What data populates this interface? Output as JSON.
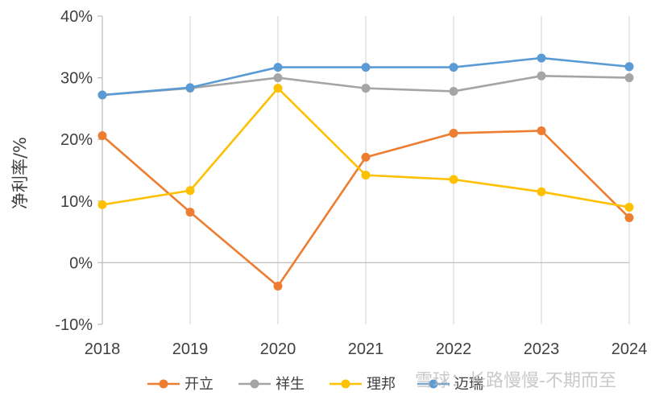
{
  "chart_data": {
    "type": "line",
    "title": "",
    "xlabel": "",
    "ylabel": "净利率/%",
    "categories": [
      "2018",
      "2019",
      "2020",
      "2021",
      "2022",
      "2023",
      "2024"
    ],
    "ylim": [
      -10,
      40
    ],
    "yticks": [
      -10,
      0,
      10,
      20,
      30,
      40
    ],
    "ytick_labels": [
      "-10%",
      "0%",
      "10%",
      "20%",
      "30%",
      "40%"
    ],
    "grid": "vertical",
    "legend_position": "bottom",
    "series": [
      {
        "name": "开立",
        "color": "#ED7D31",
        "values": [
          20.6,
          8.2,
          -3.8,
          17.1,
          21.0,
          21.4,
          7.3
        ]
      },
      {
        "name": "祥生",
        "color": "#A5A5A5",
        "values": [
          27.2,
          28.3,
          30.0,
          28.3,
          27.8,
          30.3,
          30.0
        ]
      },
      {
        "name": "理邦",
        "color": "#FFC000",
        "values": [
          9.4,
          11.7,
          28.3,
          14.2,
          13.5,
          11.5,
          9.0
        ]
      },
      {
        "name": "迈瑞",
        "color": "#5B9BD5",
        "values": [
          27.2,
          28.4,
          31.7,
          31.7,
          31.7,
          33.2,
          31.8
        ]
      }
    ]
  },
  "watermark": "雪球：长路慢慢-不期而至"
}
